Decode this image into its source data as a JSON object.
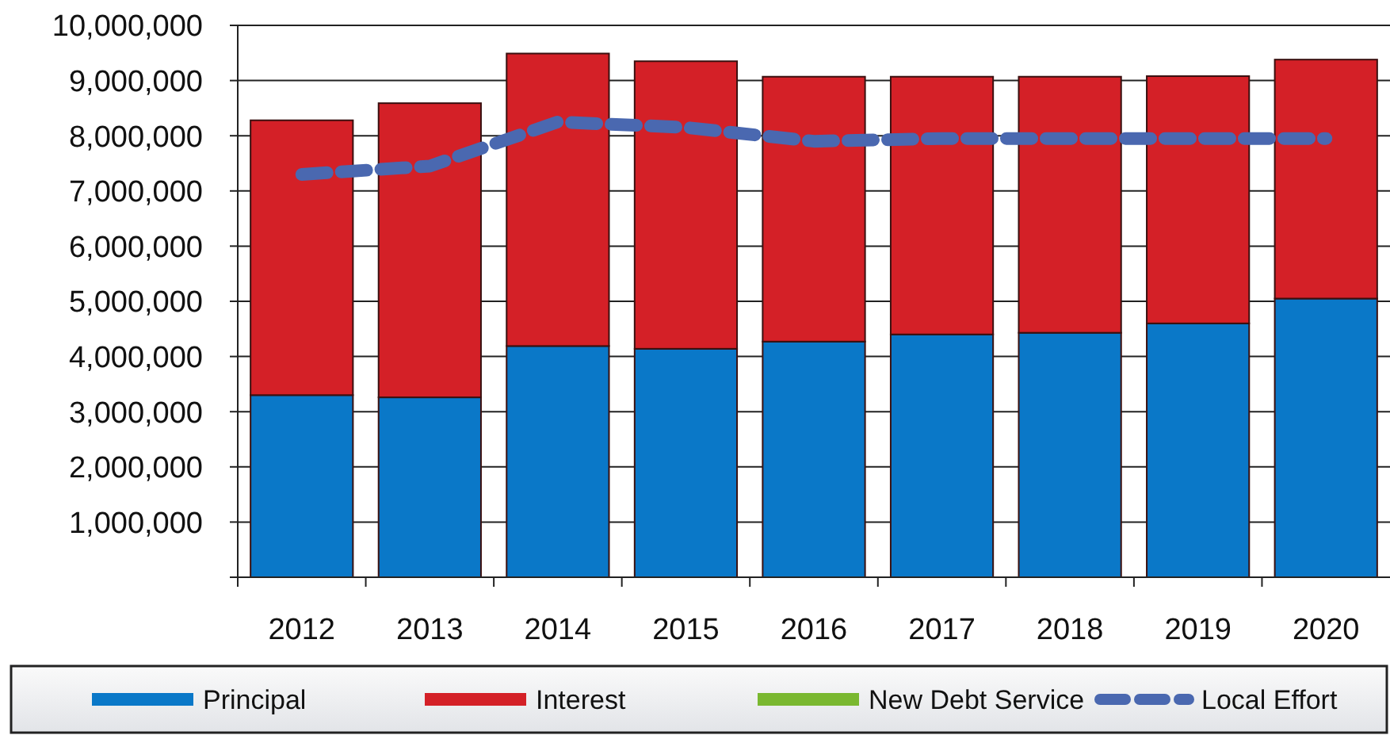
{
  "chart_data": {
    "type": "bar",
    "stacked": true,
    "categories": [
      "2012",
      "2013",
      "2014",
      "2015",
      "2016",
      "2017",
      "2018",
      "2019",
      "2020"
    ],
    "series": [
      {
        "name": "Principal",
        "color": "#0a78c8",
        "values": [
          3300000,
          3260000,
          4190000,
          4140000,
          4270000,
          4400000,
          4430000,
          4600000,
          5050000
        ]
      },
      {
        "name": "Interest",
        "color": "#d42027",
        "values": [
          4980000,
          5330000,
          5300000,
          5210000,
          4800000,
          4670000,
          4640000,
          4480000,
          4330000
        ]
      },
      {
        "name": "New Debt Service",
        "color": "#7ab830",
        "values": [
          0,
          0,
          0,
          0,
          0,
          0,
          0,
          0,
          0
        ]
      },
      {
        "name": "Local Effort",
        "type": "line",
        "color": "#4a68b0",
        "line_style": "dashed",
        "marker": "none",
        "values": [
          7300000,
          7450000,
          8250000,
          8150000,
          7900000,
          7950000,
          7950000,
          7950000,
          7950000
        ]
      }
    ],
    "ylim": [
      0,
      10000000
    ],
    "yticks": [
      {
        "value": 0,
        "label": null
      },
      {
        "value": 1000000,
        "label": "1,000,000"
      },
      {
        "value": 2000000,
        "label": "2,000,000"
      },
      {
        "value": 3000000,
        "label": "3,000,000"
      },
      {
        "value": 4000000,
        "label": "4,000,000"
      },
      {
        "value": 5000000,
        "label": "5,000,000"
      },
      {
        "value": 6000000,
        "label": "6,000,000"
      },
      {
        "value": 7000000,
        "label": "7,000,000"
      },
      {
        "value": 8000000,
        "label": "8,000,000"
      },
      {
        "value": 9000000,
        "label": "9,000,000"
      },
      {
        "value": 10000000,
        "label": "10,000,000"
      }
    ],
    "grid": "y",
    "legend": "bottom"
  }
}
